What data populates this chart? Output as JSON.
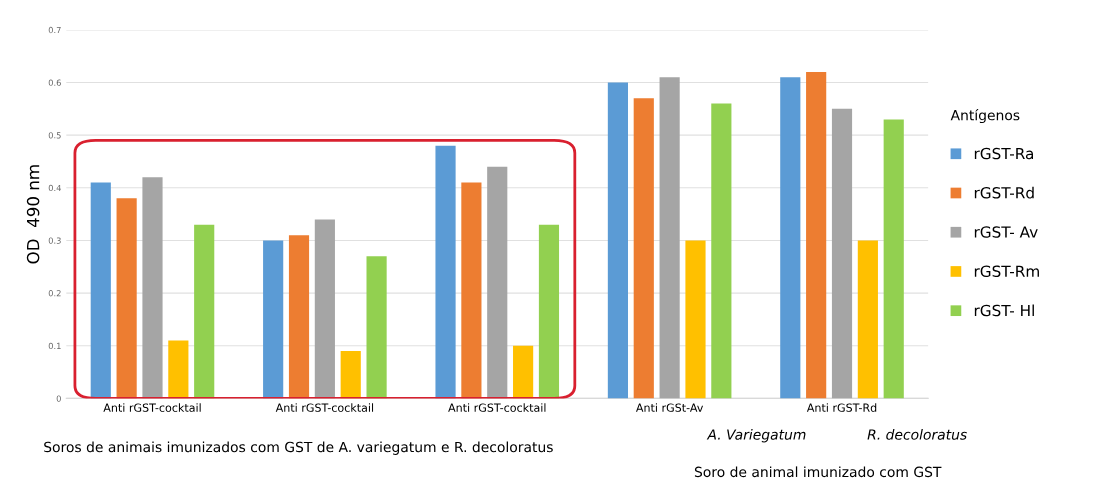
{
  "chart_data": {
    "type": "bar",
    "ylabel": "OD  490 nm",
    "legend_title": "Antígenos",
    "legend": "right",
    "categories": [
      "Anti rGST-cocktail",
      "Anti rGST-cocktail",
      "Anti rGST-cocktail",
      "Anti rGSt-Av",
      "Anti rGST-Rd"
    ],
    "series": [
      {
        "name": "rGST-Ra",
        "color": "#5b9bd5",
        "values": [
          0.41,
          0.3,
          0.48,
          0.6,
          0.61
        ]
      },
      {
        "name": "rGST-Rd",
        "color": "#ed7d31",
        "values": [
          0.38,
          0.31,
          0.41,
          0.57,
          0.62
        ]
      },
      {
        "name": "rGST- Av",
        "color": "#a5a5a5",
        "values": [
          0.42,
          0.34,
          0.44,
          0.61,
          0.55
        ]
      },
      {
        "name": "rGST-Rm",
        "color": "#ffc000",
        "values": [
          0.11,
          0.09,
          0.1,
          0.3,
          0.3
        ]
      },
      {
        "name": "rGST- Hl",
        "color": "#92d050",
        "values": [
          0.33,
          0.27,
          0.33,
          0.56,
          0.53
        ]
      }
    ],
    "ylim": [
      0,
      0.7
    ],
    "yticks": [
      0,
      0.1,
      0.2,
      0.3,
      0.4,
      0.5,
      0.6,
      0.7
    ],
    "grid": "y",
    "annotations": [
      "Soros de animais imunizados com GST de A. variegatum e R. decoloratus",
      "A. Variegatum",
      "R. decoloratus",
      "Soro de animal imunizado com GST"
    ]
  }
}
